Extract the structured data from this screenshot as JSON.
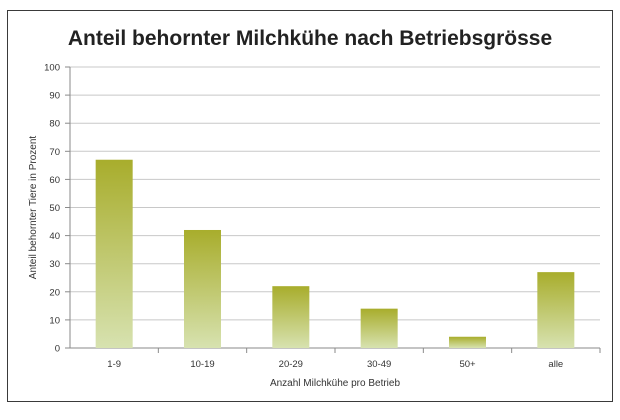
{
  "chart_data": {
    "type": "bar",
    "title": "Anteil behornter Milchkühe nach Betriebsgrösse",
    "xlabel": "Anzahl Milchkühe pro Betrieb",
    "ylabel": "Anteil behornter Tiere in Prozent",
    "categories": [
      "1-9",
      "10-19",
      "20-29",
      "30-49",
      "50+",
      "alle"
    ],
    "values": [
      67,
      42,
      22,
      14,
      4,
      27
    ],
    "ylim": [
      0,
      100
    ],
    "yticks": [
      "0",
      "10",
      "20",
      "30",
      "40",
      "50",
      "60",
      "70",
      "80",
      "90",
      "100"
    ],
    "grid": true,
    "legend": "none",
    "bar_color_top": "#a8ad2c",
    "bar_color_bottom": "#d7e2b0",
    "grid_color": "#c8c8c8"
  }
}
